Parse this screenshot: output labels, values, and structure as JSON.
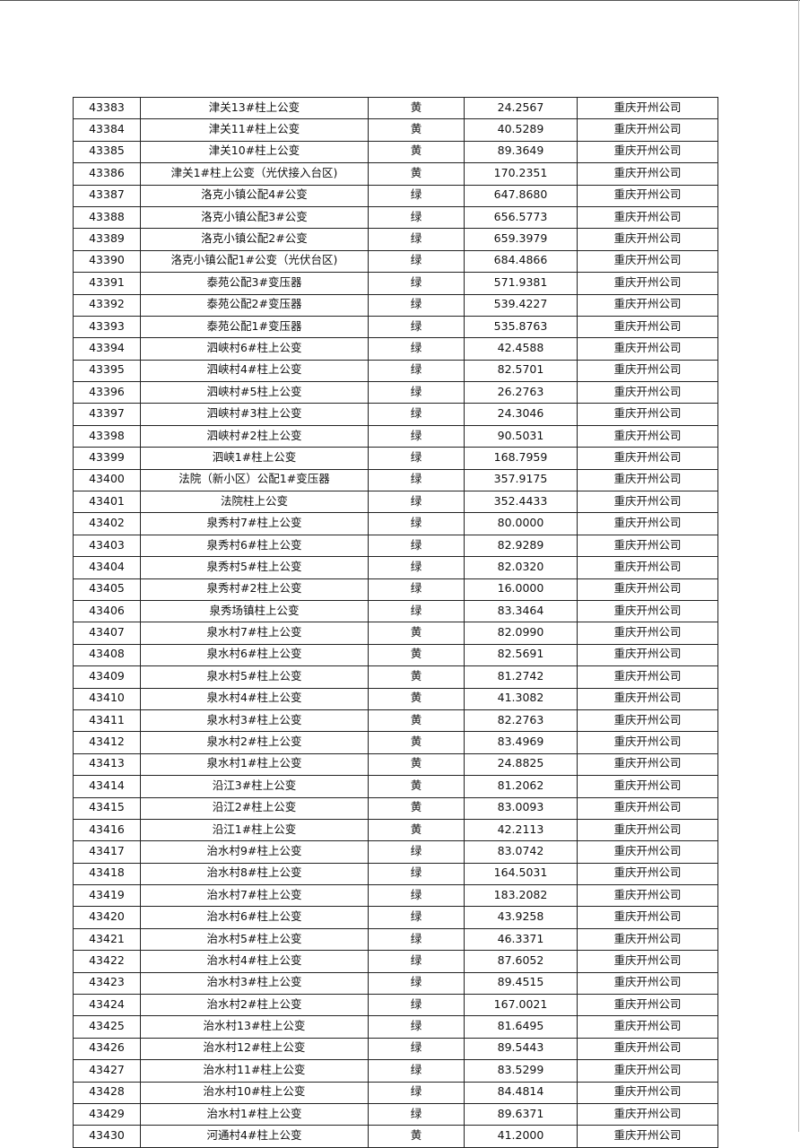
{
  "table": {
    "rows": [
      [
        "43383",
        "津关13#柱上公变",
        "黄",
        "24.2567",
        "重庆开州公司"
      ],
      [
        "43384",
        "津关11#柱上公变",
        "黄",
        "40.5289",
        "重庆开州公司"
      ],
      [
        "43385",
        "津关10#柱上公变",
        "黄",
        "89.3649",
        "重庆开州公司"
      ],
      [
        "43386",
        "津关1#柱上公变（光伏接入台区)",
        "黄",
        "170.2351",
        "重庆开州公司"
      ],
      [
        "43387",
        "洛克小镇公配4#公变",
        "绿",
        "647.8680",
        "重庆开州公司"
      ],
      [
        "43388",
        "洛克小镇公配3#公变",
        "绿",
        "656.5773",
        "重庆开州公司"
      ],
      [
        "43389",
        "洛克小镇公配2#公变",
        "绿",
        "659.3979",
        "重庆开州公司"
      ],
      [
        "43390",
        "洛克小镇公配1#公变（光伏台区)",
        "绿",
        "684.4866",
        "重庆开州公司"
      ],
      [
        "43391",
        "泰苑公配3#变压器",
        "绿",
        "571.9381",
        "重庆开州公司"
      ],
      [
        "43392",
        "泰苑公配2#变压器",
        "绿",
        "539.4227",
        "重庆开州公司"
      ],
      [
        "43393",
        "泰苑公配1#变压器",
        "绿",
        "535.8763",
        "重庆开州公司"
      ],
      [
        "43394",
        "泗峡村6#柱上公变",
        "绿",
        "42.4588",
        "重庆开州公司"
      ],
      [
        "43395",
        "泗峡村4#柱上公变",
        "绿",
        "82.5701",
        "重庆开州公司"
      ],
      [
        "43396",
        "泗峡村#5柱上公变",
        "绿",
        "26.2763",
        "重庆开州公司"
      ],
      [
        "43397",
        "泗峡村#3柱上公变",
        "绿",
        "24.3046",
        "重庆开州公司"
      ],
      [
        "43398",
        "泗峡村#2柱上公变",
        "绿",
        "90.5031",
        "重庆开州公司"
      ],
      [
        "43399",
        "泗峡1#柱上公变",
        "绿",
        "168.7959",
        "重庆开州公司"
      ],
      [
        "43400",
        "法院（新小区）公配1#变压器",
        "绿",
        "357.9175",
        "重庆开州公司"
      ],
      [
        "43401",
        "法院柱上公变",
        "绿",
        "352.4433",
        "重庆开州公司"
      ],
      [
        "43402",
        "泉秀村7#柱上公变",
        "绿",
        "80.0000",
        "重庆开州公司"
      ],
      [
        "43403",
        "泉秀村6#柱上公变",
        "绿",
        "82.9289",
        "重庆开州公司"
      ],
      [
        "43404",
        "泉秀村5#柱上公变",
        "绿",
        "82.0320",
        "重庆开州公司"
      ],
      [
        "43405",
        "泉秀村#2柱上公变",
        "绿",
        "16.0000",
        "重庆开州公司"
      ],
      [
        "43406",
        "泉秀场镇柱上公变",
        "绿",
        "83.3464",
        "重庆开州公司"
      ],
      [
        "43407",
        "泉水村7#柱上公变",
        "黄",
        "82.0990",
        "重庆开州公司"
      ],
      [
        "43408",
        "泉水村6#柱上公变",
        "黄",
        "82.5691",
        "重庆开州公司"
      ],
      [
        "43409",
        "泉水村5#柱上公变",
        "黄",
        "81.2742",
        "重庆开州公司"
      ],
      [
        "43410",
        "泉水村4#柱上公变",
        "黄",
        "41.3082",
        "重庆开州公司"
      ],
      [
        "43411",
        "泉水村3#柱上公变",
        "黄",
        "82.2763",
        "重庆开州公司"
      ],
      [
        "43412",
        "泉水村2#柱上公变",
        "黄",
        "83.4969",
        "重庆开州公司"
      ],
      [
        "43413",
        "泉水村1#柱上公变",
        "黄",
        "24.8825",
        "重庆开州公司"
      ],
      [
        "43414",
        "沿江3#柱上公变",
        "黄",
        "81.2062",
        "重庆开州公司"
      ],
      [
        "43415",
        "沿江2#柱上公变",
        "黄",
        "83.0093",
        "重庆开州公司"
      ],
      [
        "43416",
        "沿江1#柱上公变",
        "黄",
        "42.2113",
        "重庆开州公司"
      ],
      [
        "43417",
        "治水村9#柱上公变",
        "绿",
        "83.0742",
        "重庆开州公司"
      ],
      [
        "43418",
        "治水村8#柱上公变",
        "绿",
        "164.5031",
        "重庆开州公司"
      ],
      [
        "43419",
        "治水村7#柱上公变",
        "绿",
        "183.2082",
        "重庆开州公司"
      ],
      [
        "43420",
        "治水村6#柱上公变",
        "绿",
        "43.9258",
        "重庆开州公司"
      ],
      [
        "43421",
        "治水村5#柱上公变",
        "绿",
        "46.3371",
        "重庆开州公司"
      ],
      [
        "43422",
        "治水村4#柱上公变",
        "绿",
        "87.6052",
        "重庆开州公司"
      ],
      [
        "43423",
        "治水村3#柱上公变",
        "绿",
        "89.4515",
        "重庆开州公司"
      ],
      [
        "43424",
        "治水村2#柱上公变",
        "绿",
        "167.0021",
        "重庆开州公司"
      ],
      [
        "43425",
        "治水村13#柱上公变",
        "绿",
        "81.6495",
        "重庆开州公司"
      ],
      [
        "43426",
        "治水村12#柱上公变",
        "绿",
        "89.5443",
        "重庆开州公司"
      ],
      [
        "43427",
        "治水村11#柱上公变",
        "绿",
        "83.5299",
        "重庆开州公司"
      ],
      [
        "43428",
        "治水村10#柱上公变",
        "绿",
        "84.4814",
        "重庆开州公司"
      ],
      [
        "43429",
        "治水村1#柱上公变",
        "绿",
        "89.6371",
        "重庆开州公司"
      ],
      [
        "43430",
        "河通村4#柱上公变",
        "黄",
        "41.2000",
        "重庆开州公司"
      ]
    ]
  }
}
